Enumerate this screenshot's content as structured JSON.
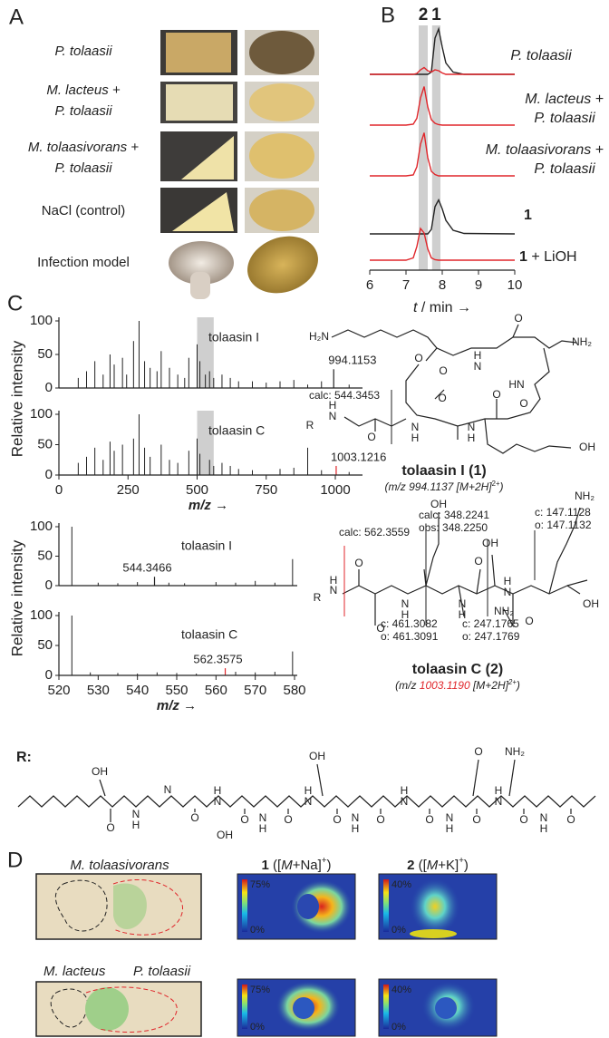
{
  "panel_a": {
    "letter": "A",
    "rows": [
      [
        "P. tolaasii"
      ],
      [
        "M. lacteus +",
        "P. tolaasii"
      ],
      [
        "M. tolaasivorans +",
        "P. tolaasii"
      ],
      [
        "NaCl (control)"
      ],
      [
        "Infection model"
      ]
    ]
  },
  "panel_b": {
    "letter": "B",
    "type": "line",
    "peak_labels": [
      {
        "text": "2",
        "color": "#e0262b"
      },
      {
        "text": "1",
        "color": "#222"
      }
    ],
    "bands": [
      [
        7.35,
        7.6
      ],
      [
        7.72,
        7.95
      ]
    ],
    "x": [
      6,
      7,
      7.2,
      7.3,
      7.4,
      7.5,
      7.6,
      7.7,
      7.8,
      7.9,
      8,
      8.1,
      8.3,
      8.6,
      10
    ],
    "xlim": [
      6,
      10
    ],
    "xticks": [
      6,
      7,
      8,
      9,
      10
    ],
    "ylim": [
      0,
      1
    ],
    "xlabel": [
      "t",
      " / min →"
    ],
    "traces": [
      {
        "label": [
          "P. tolaasii"
        ],
        "style": "italic",
        "series": [
          {
            "color": "#222",
            "values": [
              0,
              0,
              0,
              0,
              0,
              0,
              0,
              0.05,
              0.8,
              1,
              0.6,
              0.25,
              0.05,
              0,
              0
            ]
          },
          {
            "color": "#e0262b",
            "values": [
              0,
              0,
              0,
              0.02,
              0.1,
              0.15,
              0.08,
              0.05,
              0.1,
              0.08,
              0.03,
              0,
              0,
              0,
              0
            ]
          }
        ]
      },
      {
        "label": [
          "M. lacteus +",
          "P. tolaasii"
        ],
        "style": "italic",
        "series": [
          {
            "color": "#e0262b",
            "values": [
              0,
              0,
              0.02,
              0.15,
              0.6,
              0.85,
              0.4,
              0.12,
              0.04,
              0.01,
              0,
              0,
              0,
              0,
              0
            ]
          }
        ]
      },
      {
        "label": [
          "M. tolaasivorans +",
          "P. tolaasii"
        ],
        "style": "italic",
        "series": [
          {
            "color": "#e0262b",
            "values": [
              0,
              0,
              0.02,
              0.2,
              0.7,
              0.95,
              0.4,
              0.1,
              0.03,
              0,
              0,
              0,
              0,
              0,
              0
            ]
          }
        ]
      },
      {
        "label": [
          "1"
        ],
        "style": "compound",
        "series": [
          {
            "color": "#222",
            "values": [
              0,
              0,
              0,
              0,
              0,
              0,
              0,
              0.1,
              0.6,
              0.75,
              0.55,
              0.3,
              0.08,
              0.01,
              0
            ]
          }
        ]
      },
      {
        "label": [
          "1",
          " + LiOH"
        ],
        "style": "compound",
        "series": [
          {
            "color": "#e0262b",
            "values": [
              0,
              0,
              0.05,
              0.3,
              0.7,
              0.6,
              0.25,
              0.05,
              0.01,
              0,
              0,
              0,
              0,
              0,
              0
            ]
          }
        ]
      }
    ]
  },
  "panel_c": {
    "letter": "C",
    "ylabel": "Relative intensity",
    "xlabel": [
      "m/z",
      " →"
    ],
    "full": {
      "xlim": [
        0,
        1100
      ],
      "xticks": [
        0,
        250,
        500,
        750,
        1000
      ],
      "ylim": [
        0,
        100
      ],
      "yticks": [
        0,
        50,
        100
      ],
      "highlight": [
        500,
        560
      ],
      "spectra": [
        {
          "name": "tolaasin I",
          "color": "#222",
          "x": [
            70,
            100,
            130,
            160,
            185,
            200,
            230,
            245,
            270,
            290,
            310,
            330,
            355,
            370,
            400,
            430,
            455,
            470,
            500,
            510,
            530,
            545,
            560,
            590,
            620,
            650,
            700,
            750,
            800,
            850,
            900,
            950,
            1050
          ],
          "values": [
            15,
            25,
            40,
            20,
            50,
            35,
            45,
            20,
            70,
            100,
            40,
            30,
            25,
            55,
            30,
            20,
            15,
            45,
            65,
            40,
            20,
            25,
            15,
            20,
            15,
            10,
            10,
            8,
            10,
            12,
            5,
            10,
            5
          ],
          "labeled_peak": {
            "x": 994.1153,
            "value": 28,
            "color": "#222"
          }
        },
        {
          "name": "tolaasin C",
          "color": "#222",
          "x": [
            70,
            100,
            130,
            160,
            185,
            200,
            230,
            270,
            290,
            310,
            330,
            370,
            400,
            430,
            470,
            500,
            510,
            545,
            560,
            590,
            620,
            650,
            700,
            800,
            850,
            900,
            950,
            1050
          ],
          "values": [
            20,
            30,
            45,
            25,
            55,
            40,
            50,
            60,
            100,
            45,
            30,
            50,
            25,
            20,
            40,
            60,
            35,
            25,
            15,
            20,
            15,
            10,
            8,
            10,
            12,
            45,
            8,
            5
          ],
          "labeled_peak": {
            "x": 1003.1216,
            "value": 15,
            "color": "#e0262b"
          }
        }
      ]
    },
    "zoom": {
      "xlim": [
        520,
        580
      ],
      "xticks": [
        520,
        530,
        540,
        550,
        560,
        570,
        580
      ],
      "ylim": [
        0,
        100
      ],
      "yticks": [
        0,
        50,
        100
      ],
      "spectra": [
        {
          "name": "tolaasin I",
          "color": "#222",
          "x": [
            523.3,
            530,
            535,
            540,
            548,
            552,
            560,
            565,
            570,
            575,
            579.5
          ],
          "values": [
            100,
            5,
            4,
            6,
            5,
            4,
            6,
            5,
            8,
            5,
            45
          ],
          "labeled_peak": {
            "x": 544.3466,
            "value": 15,
            "color": "#222"
          }
        },
        {
          "name": "tolaasin C",
          "color": "#222",
          "x": [
            523.3,
            528,
            535,
            540,
            545,
            550,
            555,
            565,
            570,
            575,
            579.5
          ],
          "values": [
            100,
            5,
            4,
            3,
            5,
            4,
            3,
            6,
            5,
            6,
            40
          ],
          "labeled_peak": {
            "x": 562.3575,
            "value": 12,
            "color": "#e0262b"
          }
        }
      ]
    }
  },
  "structure_1": {
    "atoms": [
      "H₂N",
      "NH₂",
      "O",
      "O",
      "H",
      "N",
      "O",
      "HN",
      "O",
      "R",
      "N",
      "H",
      "O",
      "N",
      "H",
      "N",
      "H",
      "O",
      "O",
      "OH"
    ],
    "annotation": "calc: 544.3453",
    "name": "tolaasin I (1)",
    "formula": [
      "(m/z 994.1137 [M+2H]",
      "2+",
      ")"
    ]
  },
  "structure_2": {
    "atoms": [
      "NH₂",
      "OH",
      "OH",
      "R",
      "N",
      "H",
      "O",
      "N",
      "H",
      "O",
      "N",
      "H",
      "O",
      "N",
      "H",
      "O",
      "OH",
      "NH₂"
    ],
    "annotations": [
      {
        "text": "calc: 562.3559",
        "color": "#e0262b"
      },
      {
        "text": "calc: 348.2241",
        "color": "#222"
      },
      {
        "text": "obs: 348.2250",
        "color": "#222"
      },
      {
        "text": "c: 147.1128",
        "color": "#222"
      },
      {
        "text": "o: 147.1132",
        "color": "#222"
      },
      {
        "text": "c: 461.3082",
        "color": "#222"
      },
      {
        "text": "o: 461.3091",
        "color": "#222"
      },
      {
        "text": "c: 247.1765",
        "color": "#222"
      },
      {
        "text": "o: 247.1769",
        "color": "#222"
      }
    ],
    "name": "tolaasin C (2)",
    "formula": [
      "(m/z",
      " 1003.1190",
      " [M+2H]",
      "2+",
      ")"
    ]
  },
  "structure_r": {
    "label": "R:",
    "atoms": [
      "OH",
      "O",
      "N",
      "H",
      "N",
      "O",
      "N",
      "H",
      "OH",
      "O",
      "N",
      "H",
      "O",
      "N",
      "H",
      "OH",
      "O",
      "N",
      "H",
      "O",
      "N",
      "H",
      "O",
      "N",
      "H",
      "NH₂",
      "O",
      "O",
      "N",
      "H",
      "O",
      "N",
      "H",
      "O"
    ]
  },
  "panel_d": {
    "letter": "D",
    "rows": [
      {
        "labels": [
          {
            "text": "M. tolaasivorans",
            "color": "#222"
          }
        ]
      },
      {
        "labels": [
          {
            "text": "M. lacteus",
            "color": "#222"
          },
          {
            "text": "P. tolaasii",
            "color": "#e0262b"
          }
        ]
      }
    ],
    "maps": [
      {
        "title": [
          "1",
          " ([",
          "M",
          "+Na]",
          "+",
          ")"
        ],
        "cbar_ticks": [
          {
            "value": 75,
            "label": "75%"
          },
          {
            "value": 0,
            "label": "0%"
          }
        ]
      },
      {
        "title": [
          "2",
          " ([",
          "M",
          "+K]",
          "+",
          ")"
        ],
        "cbar_ticks": [
          {
            "value": 40,
            "label": "40%"
          },
          {
            "value": 0,
            "label": "0%"
          }
        ]
      }
    ]
  }
}
